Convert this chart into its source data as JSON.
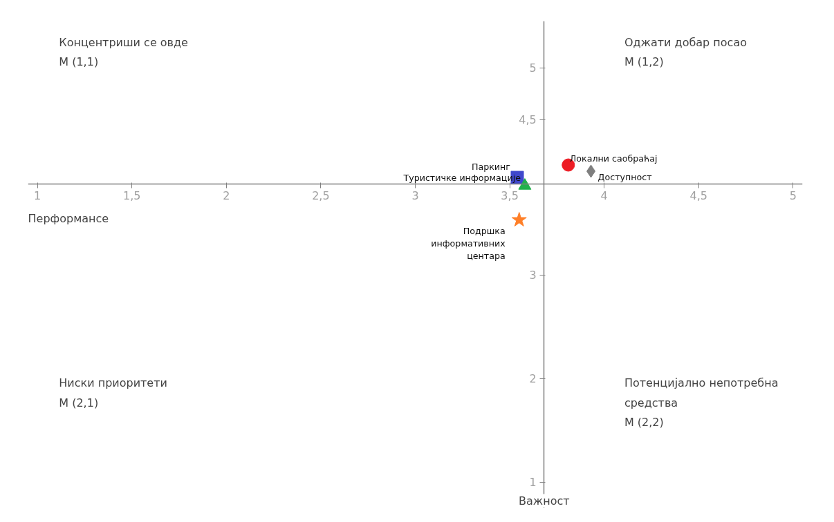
{
  "chart_data": {
    "type": "scatter",
    "xlabel": "Перформансе",
    "ylabel": "Важност",
    "xlim": [
      0.95,
      5.05
    ],
    "ylim": [
      0.75,
      5.45
    ],
    "xticks": [
      1,
      {
        "value": 1.5,
        "label": "1,5"
      },
      2,
      {
        "value": 2.5,
        "label": "2,5"
      },
      3,
      {
        "value": 3.5,
        "label": "3,5"
      },
      4,
      {
        "value": 4.5,
        "label": "4,5"
      },
      5
    ],
    "yticks": [
      1,
      2,
      3,
      {
        "value": 4.5,
        "label": "4,5"
      },
      5
    ],
    "legend": false,
    "series": [
      {
        "name": "Локални саобраћај",
        "color": "#ed1c24",
        "marker": "circle",
        "x": [
          3.81
        ],
        "values": [
          4.06
        ]
      },
      {
        "name": "Доступност",
        "color": "#7f7f7f",
        "marker": "diamond",
        "x": [
          3.93
        ],
        "values": [
          4.0
        ]
      },
      {
        "name": "Паркинг",
        "color": "#3f48cc",
        "marker": "square",
        "x": [
          3.54
        ],
        "values": [
          3.94
        ]
      },
      {
        "name": "Туристичке информације",
        "color": "#22b14c",
        "marker": "triangle",
        "x": [
          3.58
        ],
        "values": [
          3.86
        ]
      },
      {
        "name": "Подршка информативних центара",
        "color": "#ff7f27",
        "marker": "star",
        "x": [
          3.55
        ],
        "values": [
          3.53
        ]
      }
    ],
    "annotations": [
      "Концентриши се овде\nM (1,1)",
      "Оджати добар посао\n M (1,2)",
      "Ниски приоритети\nM (2,1)",
      "Потенцијално непотребна\nсредства\nM (2,2)"
    ]
  }
}
